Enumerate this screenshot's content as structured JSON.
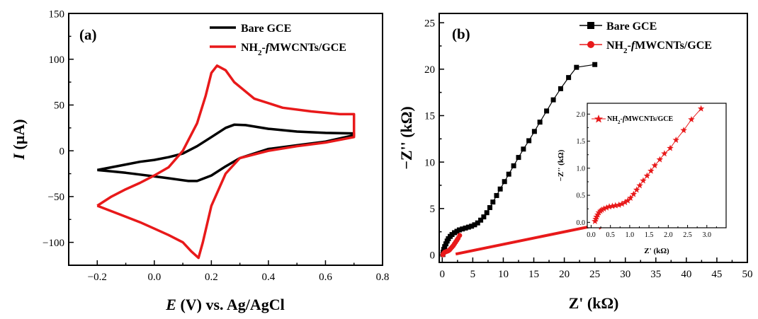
{
  "chart_data": [
    {
      "panel_label": "(a)",
      "type": "line",
      "xlabel_italic": "E",
      "xlabel_rest": " (V) vs. Ag/AgCl",
      "ylabel_italic": "I",
      "ylabel_rest": " (µA)",
      "xlim": [
        -0.3,
        0.8
      ],
      "ylim": [
        -125,
        150
      ],
      "xticks": [
        -0.2,
        0.0,
        0.2,
        0.4,
        0.6,
        0.8
      ],
      "xtick_labels": [
        "−0.2",
        "0.0",
        "0.2",
        "0.4",
        "0.6",
        "0.8"
      ],
      "yticks": [
        -100,
        -50,
        0,
        50,
        100,
        150
      ],
      "ytick_labels": [
        "−100",
        "−50",
        "0",
        "50",
        "100",
        "150"
      ],
      "legend_position": "top-right",
      "series": [
        {
          "name": "Bare GCE",
          "color": "#000000",
          "points": [
            [
              -0.2,
              -21
            ],
            [
              -0.15,
              -18
            ],
            [
              -0.1,
              -15
            ],
            [
              -0.05,
              -12
            ],
            [
              0.0,
              -10
            ],
            [
              0.05,
              -7
            ],
            [
              0.1,
              -3
            ],
            [
              0.15,
              5
            ],
            [
              0.2,
              15
            ],
            [
              0.25,
              25
            ],
            [
              0.28,
              28.5
            ],
            [
              0.32,
              28
            ],
            [
              0.4,
              24
            ],
            [
              0.5,
              21
            ],
            [
              0.6,
              19.5
            ],
            [
              0.7,
              19
            ],
            [
              0.7,
              17
            ],
            [
              0.6,
              10
            ],
            [
              0.5,
              6
            ],
            [
              0.4,
              2
            ],
            [
              0.3,
              -8
            ],
            [
              0.25,
              -17
            ],
            [
              0.2,
              -27
            ],
            [
              0.15,
              -33
            ],
            [
              0.12,
              -33
            ],
            [
              0.05,
              -30
            ],
            [
              0.0,
              -28
            ],
            [
              -0.05,
              -26
            ],
            [
              -0.1,
              -24
            ],
            [
              -0.15,
              -22.5
            ],
            [
              -0.2,
              -21
            ]
          ]
        },
        {
          "name": "NH2-fMWCNTs/GCE",
          "color": "#e8191a",
          "points": [
            [
              -0.2,
              -60
            ],
            [
              -0.15,
              -50
            ],
            [
              -0.1,
              -42
            ],
            [
              -0.05,
              -35
            ],
            [
              0.0,
              -27
            ],
            [
              0.05,
              -18
            ],
            [
              0.1,
              0
            ],
            [
              0.15,
              30
            ],
            [
              0.18,
              60
            ],
            [
              0.2,
              85
            ],
            [
              0.22,
              93
            ],
            [
              0.25,
              88
            ],
            [
              0.28,
              75
            ],
            [
              0.35,
              57
            ],
            [
              0.45,
              47
            ],
            [
              0.55,
              43
            ],
            [
              0.65,
              40
            ],
            [
              0.7,
              40
            ],
            [
              0.7,
              15
            ],
            [
              0.6,
              9
            ],
            [
              0.5,
              5
            ],
            [
              0.4,
              0
            ],
            [
              0.3,
              -8
            ],
            [
              0.25,
              -25
            ],
            [
              0.2,
              -60
            ],
            [
              0.17,
              -100
            ],
            [
              0.155,
              -117
            ],
            [
              0.13,
              -110
            ],
            [
              0.1,
              -100
            ],
            [
              0.05,
              -92
            ],
            [
              0.0,
              -85
            ],
            [
              -0.05,
              -78
            ],
            [
              -0.1,
              -72
            ],
            [
              -0.15,
              -66
            ],
            [
              -0.2,
              -60
            ]
          ]
        }
      ]
    },
    {
      "panel_label": "(b)",
      "type": "scatter",
      "xlabel": "Z' (kΩ)",
      "ylabel": "−Z'' (kΩ)",
      "xlim": [
        -0.5,
        50
      ],
      "ylim": [
        -0.8,
        26
      ],
      "xticks": [
        0,
        5,
        10,
        15,
        20,
        25,
        30,
        35,
        40,
        45,
        50
      ],
      "xtick_labels": [
        "0",
        "5",
        "10",
        "15",
        "20",
        "25",
        "30",
        "35",
        "40",
        "45",
        "50"
      ],
      "yticks": [
        0,
        5,
        10,
        15,
        20,
        25
      ],
      "ytick_labels": [
        "0",
        "5",
        "10",
        "15",
        "20",
        "25"
      ],
      "legend_position": "top-right",
      "series": [
        {
          "name": "Bare GCE",
          "color": "#000000",
          "marker": "square",
          "points": [
            [
              0.1,
              0.05
            ],
            [
              0.15,
              0.3
            ],
            [
              0.25,
              0.6
            ],
            [
              0.4,
              0.9
            ],
            [
              0.6,
              1.2
            ],
            [
              0.8,
              1.5
            ],
            [
              1.0,
              1.75
            ],
            [
              1.3,
              2.0
            ],
            [
              1.6,
              2.2
            ],
            [
              2.0,
              2.4
            ],
            [
              2.4,
              2.55
            ],
            [
              2.8,
              2.7
            ],
            [
              3.3,
              2.8
            ],
            [
              3.8,
              2.9
            ],
            [
              4.3,
              3.0
            ],
            [
              4.8,
              3.1
            ],
            [
              5.3,
              3.25
            ],
            [
              5.8,
              3.45
            ],
            [
              6.3,
              3.75
            ],
            [
              6.8,
              4.1
            ],
            [
              7.3,
              4.55
            ],
            [
              7.8,
              5.1
            ],
            [
              8.3,
              5.7
            ],
            [
              8.9,
              6.4
            ],
            [
              9.5,
              7.1
            ],
            [
              10.2,
              7.9
            ],
            [
              10.9,
              8.7
            ],
            [
              11.7,
              9.6
            ],
            [
              12.5,
              10.5
            ],
            [
              13.3,
              11.4
            ],
            [
              14.2,
              12.3
            ],
            [
              15.1,
              13.3
            ],
            [
              16.0,
              14.3
            ],
            [
              17.1,
              15.5
            ],
            [
              18.2,
              16.7
            ],
            [
              19.4,
              17.9
            ],
            [
              20.7,
              19.1
            ],
            [
              22.0,
              20.2
            ],
            [
              25.0,
              20.5
            ]
          ]
        },
        {
          "name": "NH2-fMWCNTs/GCE",
          "color": "#e8191a",
          "marker": "circle",
          "points": [
            [
              0.1,
              0.02
            ],
            [
              0.15,
              0.1
            ],
            [
              0.25,
              0.2
            ],
            [
              0.4,
              0.3
            ],
            [
              0.6,
              0.35
            ],
            [
              0.8,
              0.4
            ],
            [
              1.0,
              0.45
            ],
            [
              1.2,
              0.55
            ],
            [
              1.4,
              0.7
            ],
            [
              1.6,
              0.85
            ],
            [
              1.8,
              1.0
            ],
            [
              2.0,
              1.2
            ],
            [
              2.2,
              1.4
            ],
            [
              2.4,
              1.6
            ],
            [
              2.6,
              1.8
            ],
            [
              2.85,
              2.1
            ]
          ]
        }
      ],
      "arrow": {
        "from": [
          2.2,
          0.1
        ],
        "to": [
          27.5,
          3.5
        ],
        "color": "#e8191a"
      }
    },
    {
      "type": "scatter",
      "inset_of": "(b)",
      "xlabel": "Z' (kΩ)",
      "ylabel": "−Z'' (kΩ)",
      "xlim": [
        -0.1,
        3.5
      ],
      "ylim": [
        -0.1,
        2.2
      ],
      "xticks": [
        0.0,
        0.5,
        1.0,
        1.5,
        2.0,
        2.5,
        3.0
      ],
      "xtick_labels": [
        "0.0",
        "0.5",
        "1.0",
        "1.5",
        "2.0",
        "2.5",
        "3.0"
      ],
      "yticks": [
        0.0,
        0.5,
        1.0,
        1.5,
        2.0
      ],
      "ytick_labels": [
        "0.0",
        "0.5",
        "1.0",
        "1.5",
        "2.0"
      ],
      "legend_position": "top-left",
      "series": [
        {
          "name": "NH2-fMWCNTs/GCE",
          "color": "#e8191a",
          "marker": "star",
          "points": [
            [
              0.1,
              0.02
            ],
            [
              0.12,
              0.06
            ],
            [
              0.14,
              0.1
            ],
            [
              0.17,
              0.14
            ],
            [
              0.2,
              0.18
            ],
            [
              0.24,
              0.21
            ],
            [
              0.28,
              0.23
            ],
            [
              0.33,
              0.25
            ],
            [
              0.4,
              0.27
            ],
            [
              0.47,
              0.29
            ],
            [
              0.55,
              0.3
            ],
            [
              0.63,
              0.31
            ],
            [
              0.72,
              0.32
            ],
            [
              0.8,
              0.34
            ],
            [
              0.88,
              0.37
            ],
            [
              0.95,
              0.4
            ],
            [
              1.02,
              0.45
            ],
            [
              1.1,
              0.52
            ],
            [
              1.18,
              0.6
            ],
            [
              1.26,
              0.68
            ],
            [
              1.35,
              0.77
            ],
            [
              1.45,
              0.86
            ],
            [
              1.55,
              0.95
            ],
            [
              1.65,
              1.05
            ],
            [
              1.78,
              1.16
            ],
            [
              1.9,
              1.27
            ],
            [
              2.05,
              1.37
            ],
            [
              2.2,
              1.52
            ],
            [
              2.4,
              1.7
            ],
            [
              2.6,
              1.9
            ],
            [
              2.85,
              2.1
            ]
          ]
        }
      ]
    }
  ]
}
